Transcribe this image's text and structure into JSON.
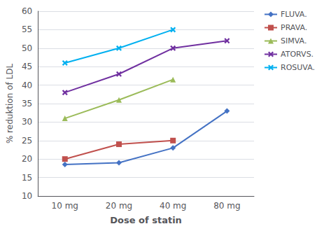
{
  "chart_data": {
    "type": "line",
    "xlabel": "Dose of statin",
    "ylabel": "% reduktion of LDL",
    "categories": [
      "10 mg",
      "20 mg",
      "40 mg",
      "80 mg"
    ],
    "series": [
      {
        "name": "FLUVA.",
        "color": "#4472C4",
        "marker": "diamond",
        "values": [
          18.5,
          19.0,
          23.0,
          33.0
        ]
      },
      {
        "name": "PRAVA.",
        "color": "#C0504D",
        "marker": "square",
        "values": [
          20.0,
          24.0,
          25.0,
          null
        ]
      },
      {
        "name": "SIMVA.",
        "color": "#9BBB59",
        "marker": "triangle",
        "values": [
          31.0,
          36.0,
          41.5,
          null
        ]
      },
      {
        "name": "ATORVS.",
        "color": "#7030A0",
        "marker": "x",
        "values": [
          38.0,
          43.0,
          50.0,
          52.0
        ]
      },
      {
        "name": "ROSUVA.",
        "color": "#00B0F0",
        "marker": "x",
        "values": [
          46.0,
          50.0,
          55.0,
          null
        ]
      }
    ],
    "ylim": [
      10,
      60
    ],
    "yticks": [
      10,
      15,
      20,
      25,
      30,
      35,
      40,
      45,
      50,
      55,
      60
    ],
    "grid": "y",
    "legend": "upper right"
  }
}
